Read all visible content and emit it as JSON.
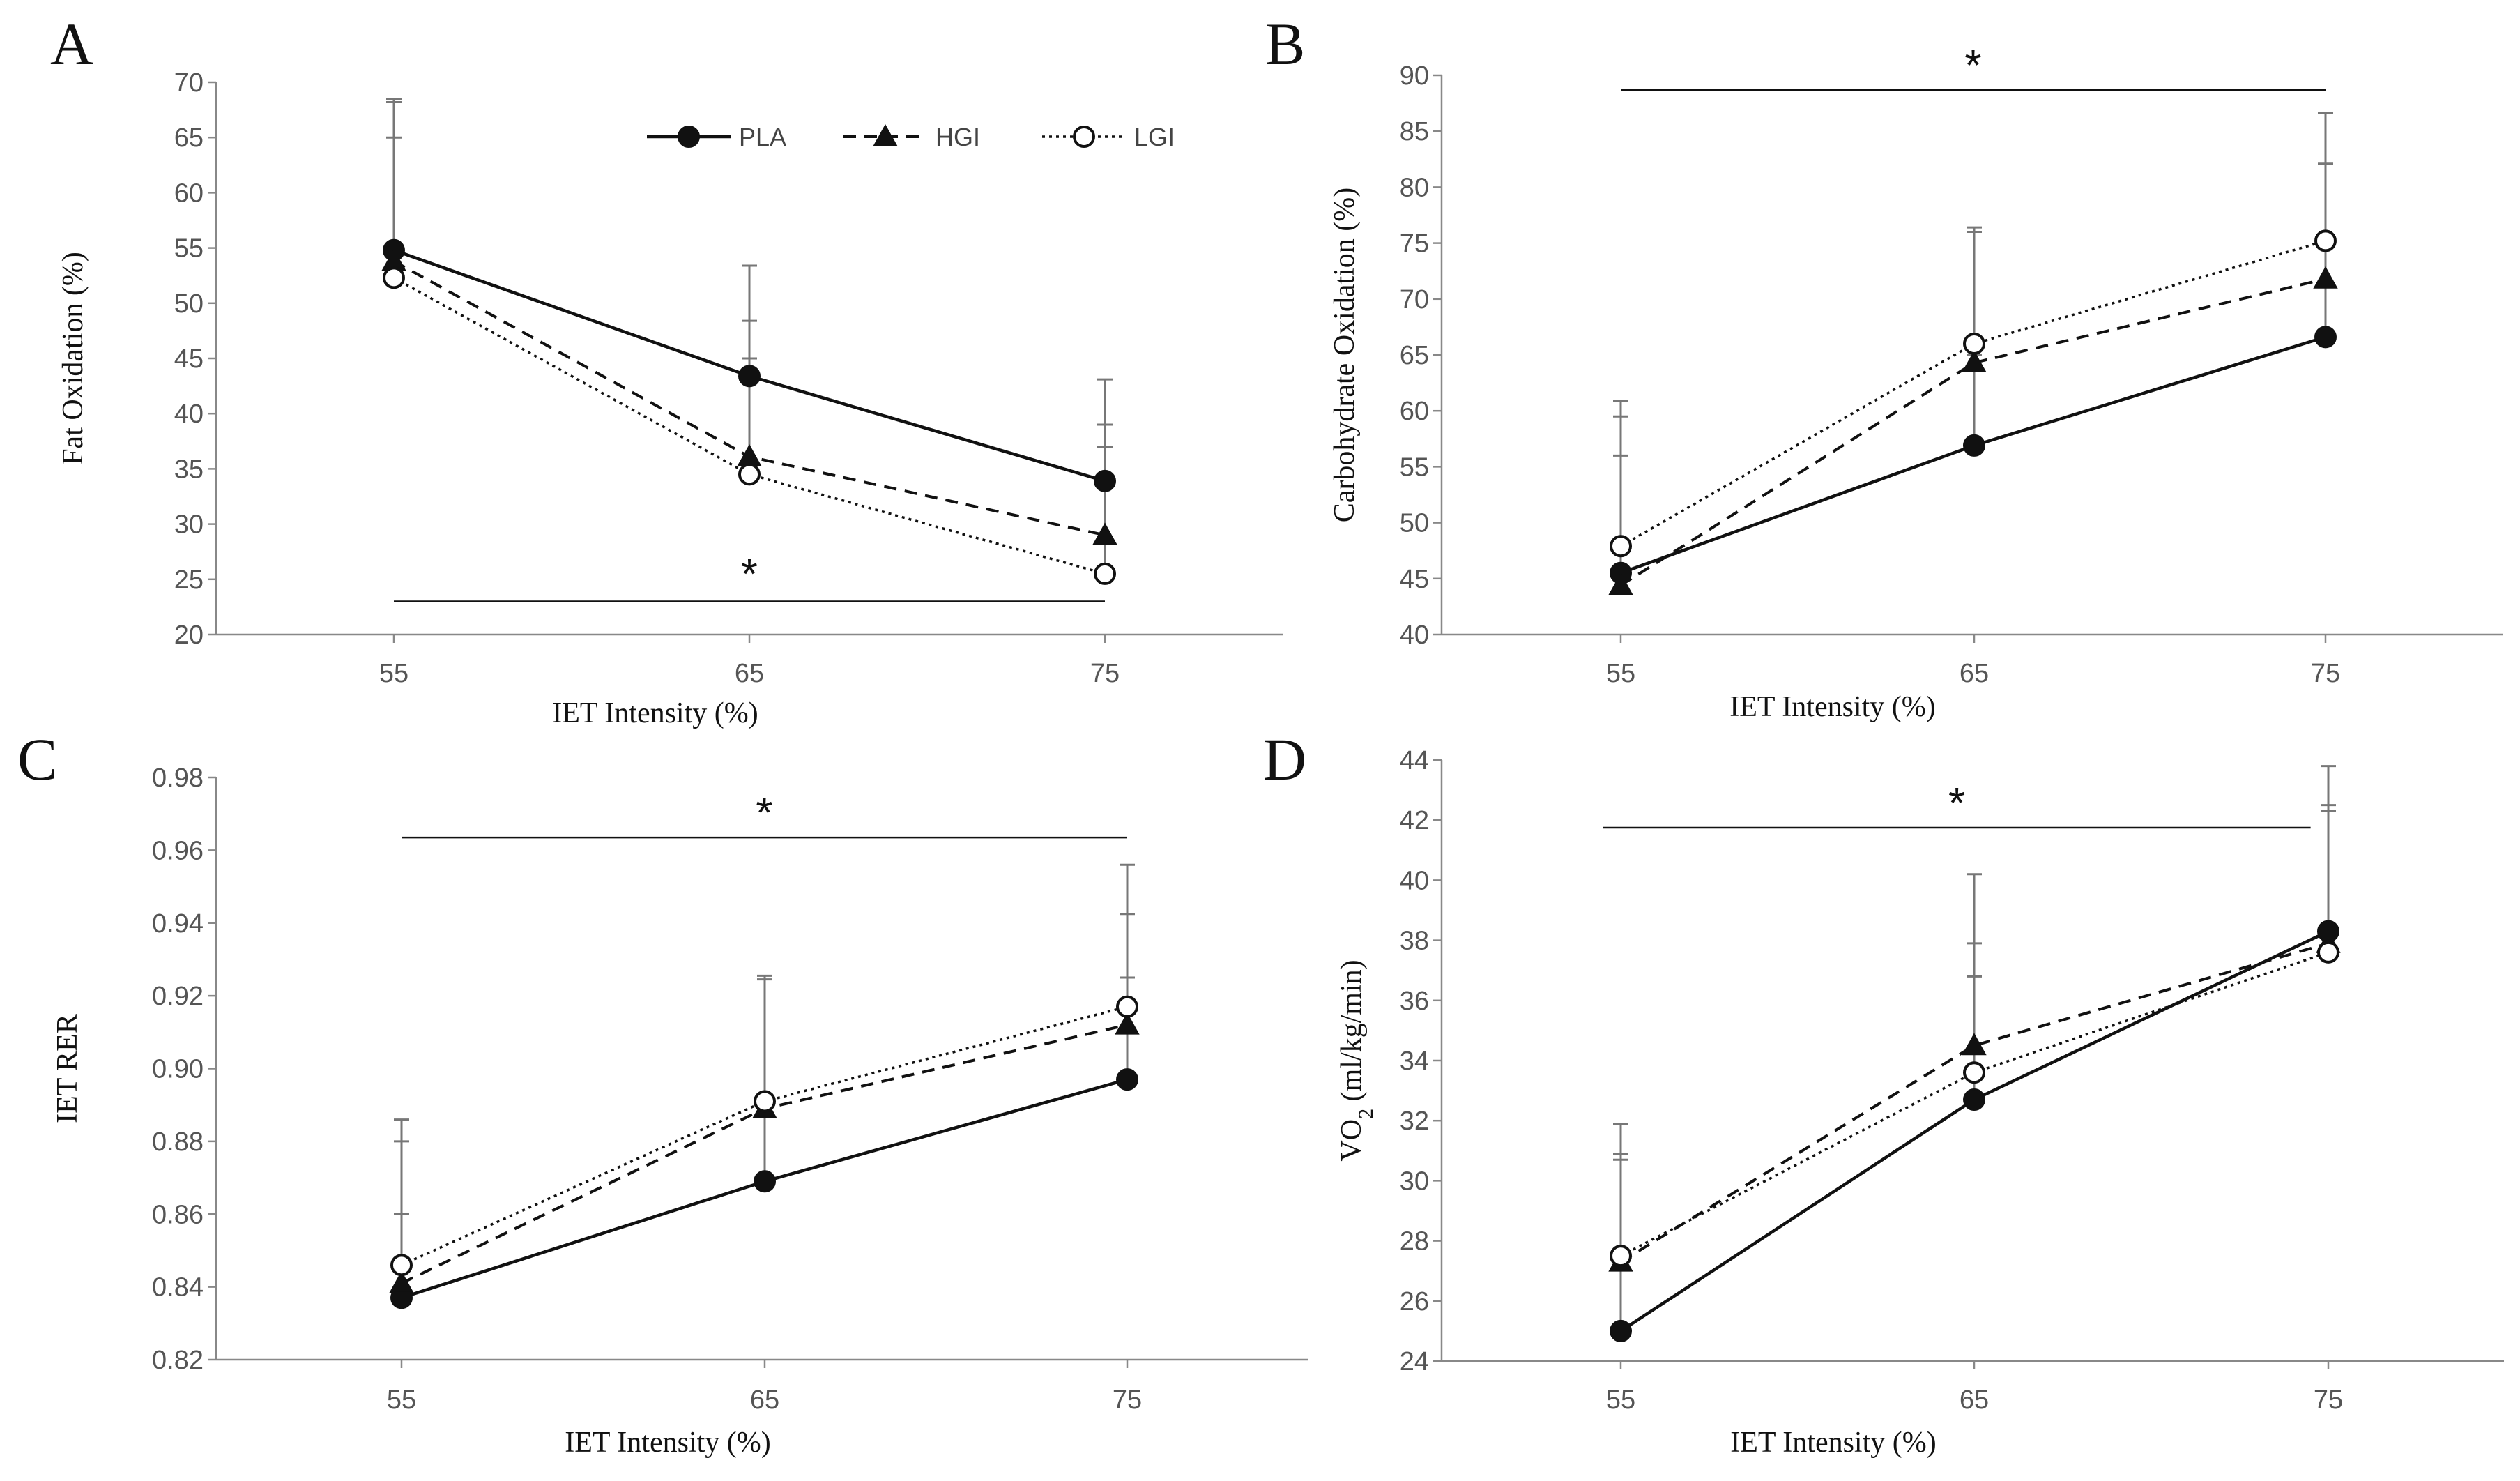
{
  "chart_data": [
    {
      "type": "line",
      "panel": "A",
      "xlabel": "IET Intensity (%)",
      "ylabel": "Fat Oxidation (%)",
      "x": [
        55,
        65,
        75
      ],
      "ylim": [
        20,
        70
      ],
      "yticks": [
        20,
        25,
        30,
        35,
        40,
        45,
        50,
        55,
        60,
        65,
        70
      ],
      "decimals": 0,
      "significance": "*",
      "significance_span": [
        55,
        75
      ],
      "significance_y": 23,
      "legend": [
        {
          "name": "PLA",
          "marker": "filled-circle",
          "line": "solid"
        },
        {
          "name": "HGI",
          "marker": "filled-triangle",
          "line": "dashed"
        },
        {
          "name": "LGI",
          "marker": "open-circle",
          "line": "dotted"
        }
      ],
      "series": [
        {
          "name": "PLA",
          "values": [
            54.8,
            43.4,
            33.9
          ],
          "error_top": [
            68.2,
            53.4,
            43.1
          ]
        },
        {
          "name": "HGI",
          "values": [
            53.8,
            36.1,
            29.0
          ],
          "error_top": [
            68.5,
            48.4,
            39.0
          ]
        },
        {
          "name": "LGI",
          "values": [
            52.3,
            34.5,
            25.5
          ],
          "error_top": [
            65.0,
            45.0,
            37.0
          ]
        }
      ]
    },
    {
      "type": "line",
      "panel": "B",
      "xlabel": "IET Intensity (%)",
      "ylabel": "Carbohydrate Oxidation (%)",
      "x": [
        55,
        65,
        75
      ],
      "ylim": [
        40,
        90
      ],
      "yticks": [
        40,
        45,
        50,
        55,
        60,
        65,
        70,
        75,
        80,
        85,
        90
      ],
      "decimals": 0,
      "significance": "*",
      "significance_span": [
        55,
        75
      ],
      "significance_y": 88.7,
      "series": [
        {
          "name": "PLA",
          "values": [
            45.5,
            56.9,
            66.6
          ],
          "error_top": [
            56.0,
            65.0,
            75.0
          ]
        },
        {
          "name": "HGI",
          "values": [
            44.4,
            64.3,
            71.8
          ],
          "error_top": [
            59.5,
            76.0,
            82.1
          ]
        },
        {
          "name": "LGI",
          "values": [
            47.9,
            66.0,
            75.2
          ],
          "error_top": [
            60.9,
            76.4,
            86.6
          ]
        }
      ]
    },
    {
      "type": "line",
      "panel": "C",
      "xlabel": "IET Intensity (%)",
      "ylabel": "IET RER",
      "x": [
        55,
        65,
        75
      ],
      "ylim": [
        0.82,
        0.98
      ],
      "yticks": [
        0.82,
        0.84,
        0.86,
        0.88,
        0.9,
        0.92,
        0.94,
        0.96,
        0.98
      ],
      "decimals": 2,
      "significance": "*",
      "significance_span": [
        55,
        75
      ],
      "significance_y": 0.9635,
      "series": [
        {
          "name": "PLA",
          "values": [
            0.837,
            0.869,
            0.897
          ],
          "error_top": [
            0.86,
            0.89,
            0.925
          ]
        },
        {
          "name": "HGI",
          "values": [
            0.841,
            0.889,
            0.912
          ],
          "error_top": [
            0.88,
            0.9245,
            0.9425
          ]
        },
        {
          "name": "LGI",
          "values": [
            0.846,
            0.891,
            0.917
          ],
          "error_top": [
            0.886,
            0.9255,
            0.956
          ]
        }
      ]
    },
    {
      "type": "line",
      "panel": "D",
      "xlabel": "IET Intensity (%)",
      "ylabel_main": "VO",
      "ylabel_sub": "2",
      "ylabel_rest": " (ml/kg/min)",
      "x": [
        55,
        65,
        75
      ],
      "ylim": [
        24,
        44
      ],
      "yticks": [
        24,
        26,
        28,
        30,
        32,
        34,
        36,
        38,
        40,
        42,
        44
      ],
      "decimals": 0,
      "significance": "*",
      "significance_span": [
        54.5,
        74.5
      ],
      "significance_y": 41.75,
      "series": [
        {
          "name": "PLA",
          "values": [
            25.0,
            32.7,
            38.3
          ],
          "error_top": [
            30.7,
            36.8,
            42.3
          ]
        },
        {
          "name": "HGI",
          "values": [
            27.3,
            34.5,
            37.9
          ],
          "error_top": [
            30.9,
            40.2,
            43.8
          ]
        },
        {
          "name": "LGI",
          "values": [
            27.5,
            33.6,
            37.6
          ],
          "error_top": [
            31.9,
            37.9,
            42.5
          ]
        }
      ]
    }
  ]
}
